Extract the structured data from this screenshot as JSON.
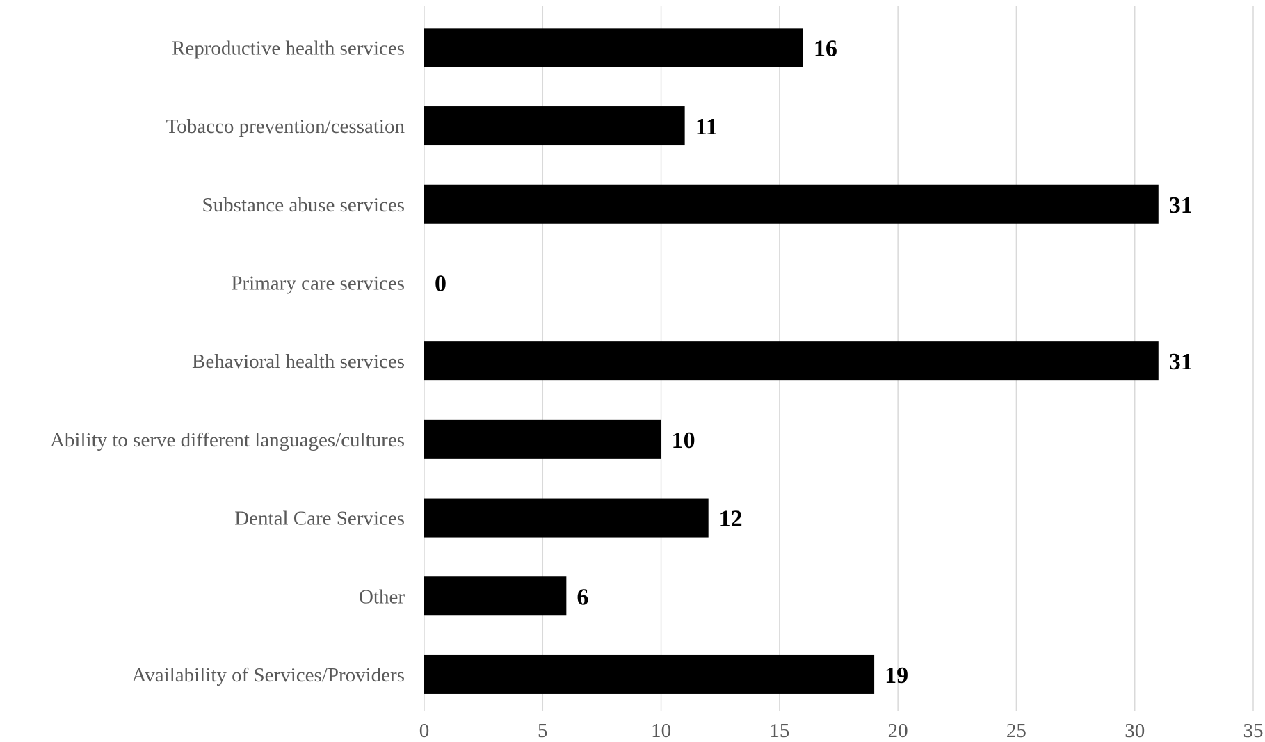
{
  "chart_data": {
    "type": "bar",
    "orientation": "horizontal",
    "categories": [
      "Reproductive health services",
      "Tobacco prevention/cessation",
      "Substance abuse services",
      "Primary care services",
      "Behavioral health services",
      "Ability to serve different languages/cultures",
      "Dental Care Services",
      "Other",
      "Availability of Services/Providers"
    ],
    "values": [
      16,
      11,
      31,
      0,
      31,
      10,
      12,
      6,
      19
    ],
    "title": "",
    "xlabel": "",
    "ylabel": "",
    "xlim": [
      0,
      35
    ],
    "xticks": [
      0,
      5,
      10,
      15,
      20,
      25,
      30,
      35
    ],
    "grid": "vertical",
    "legend": "none",
    "colors": {
      "bar": "#000000",
      "grid": "#d9d9d9",
      "axis_text": "#595959",
      "data_label": "#000000"
    }
  }
}
